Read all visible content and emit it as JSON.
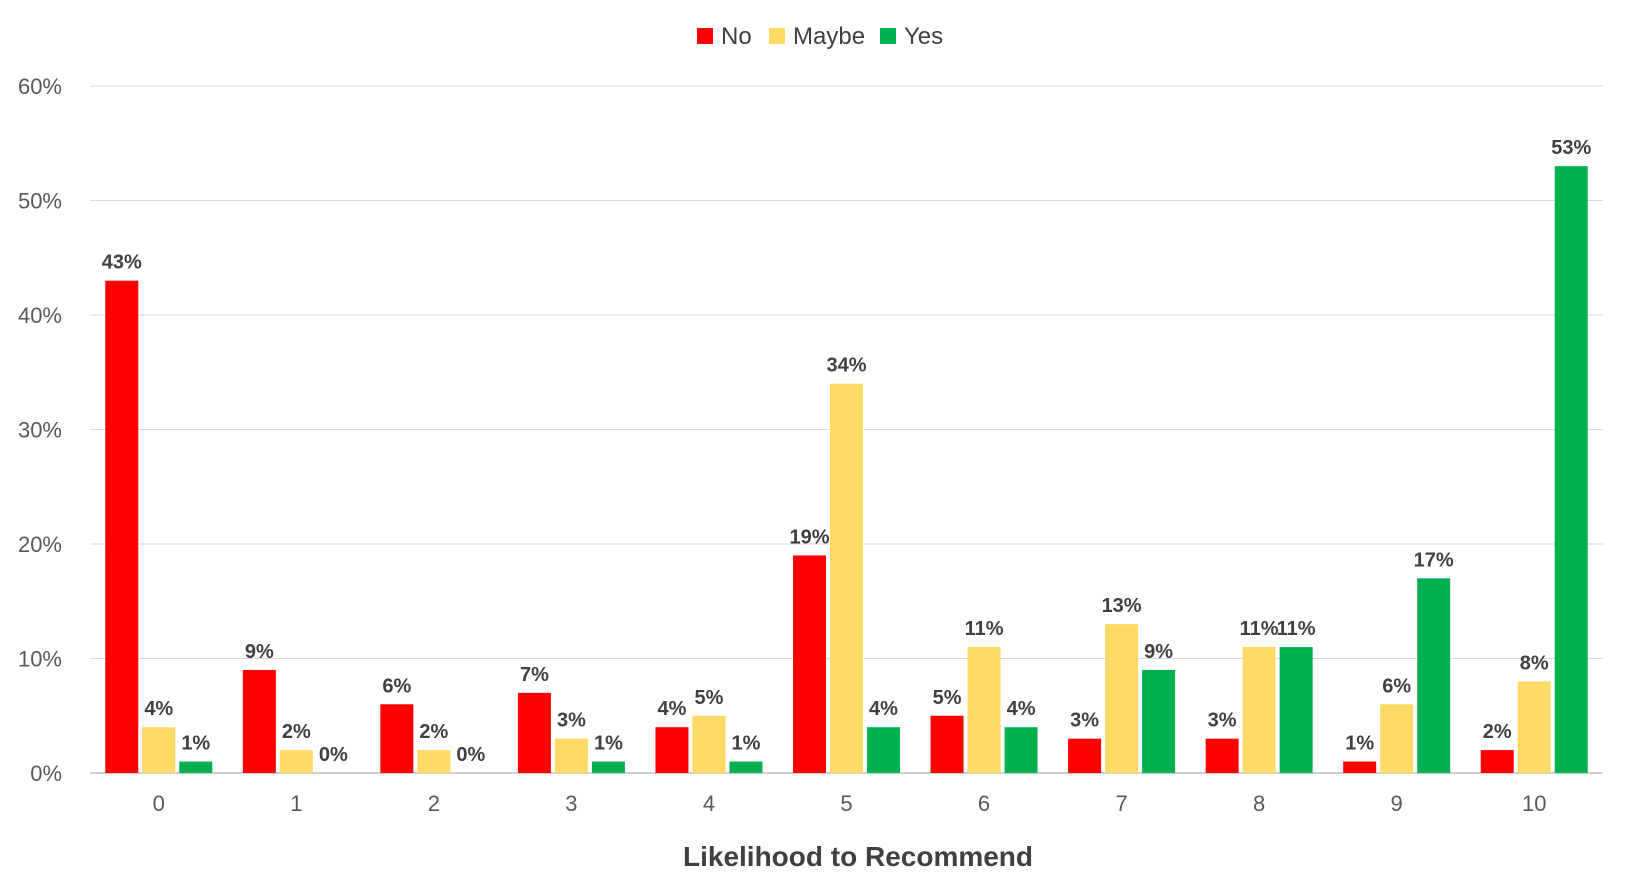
{
  "chart_data": {
    "type": "bar",
    "title": "",
    "xlabel": "Likelihood to Recommend",
    "ylabel": "",
    "categories": [
      "0",
      "1",
      "2",
      "3",
      "4",
      "5",
      "6",
      "7",
      "8",
      "9",
      "10"
    ],
    "series": [
      {
        "name": "No",
        "color": "#ff0000",
        "values": [
          43,
          9,
          6,
          7,
          4,
          19,
          5,
          3,
          3,
          1,
          2
        ]
      },
      {
        "name": "Maybe",
        "color": "#ffd966",
        "values": [
          4,
          2,
          2,
          3,
          5,
          34,
          11,
          13,
          11,
          6,
          8
        ]
      },
      {
        "name": "Yes",
        "color": "#00b050",
        "values": [
          1,
          0,
          0,
          1,
          1,
          4,
          4,
          9,
          11,
          17,
          53
        ]
      }
    ],
    "ylim": [
      0,
      60
    ],
    "yticks": [
      0,
      10,
      20,
      30,
      40,
      50,
      60
    ],
    "ytick_labels": [
      "0%",
      "10%",
      "20%",
      "30%",
      "40%",
      "50%",
      "60%"
    ],
    "value_suffix": "%",
    "legend_position": "top-center",
    "grid": true
  }
}
